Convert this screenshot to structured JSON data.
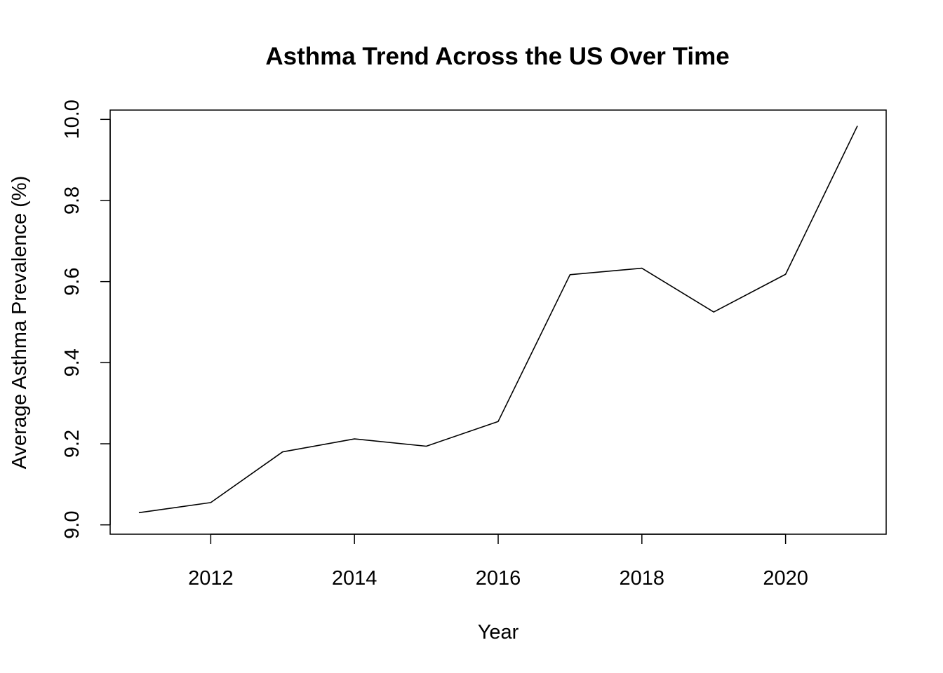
{
  "chart_data": {
    "type": "line",
    "title": "Asthma Trend Across the US Over Time",
    "xlabel": "Year",
    "ylabel": "Average Asthma Prevalence (%)",
    "x": [
      2011,
      2012,
      2013,
      2014,
      2015,
      2016,
      2017,
      2018,
      2019,
      2020,
      2021
    ],
    "series": [
      {
        "values": [
          9.03,
          9.055,
          9.18,
          9.212,
          9.194,
          9.255,
          9.617,
          9.633,
          9.525,
          9.618,
          9.984
        ]
      }
    ],
    "xlim": [
      2010.6,
      2021.4
    ],
    "ylim": [
      8.977,
      10.023
    ],
    "x_ticks": [
      2012,
      2014,
      2016,
      2018,
      2020
    ],
    "x_tick_labels": [
      "2012",
      "2014",
      "2016",
      "2018",
      "2020"
    ],
    "y_ticks": [
      9.0,
      9.2,
      9.4,
      9.6,
      9.8,
      10.0
    ],
    "y_tick_labels": [
      "9.0",
      "9.2",
      "9.4",
      "9.6",
      "9.8",
      "10.0"
    ],
    "grid": false,
    "legend": "none",
    "line_color": "#000000",
    "background_color": "#ffffff"
  }
}
